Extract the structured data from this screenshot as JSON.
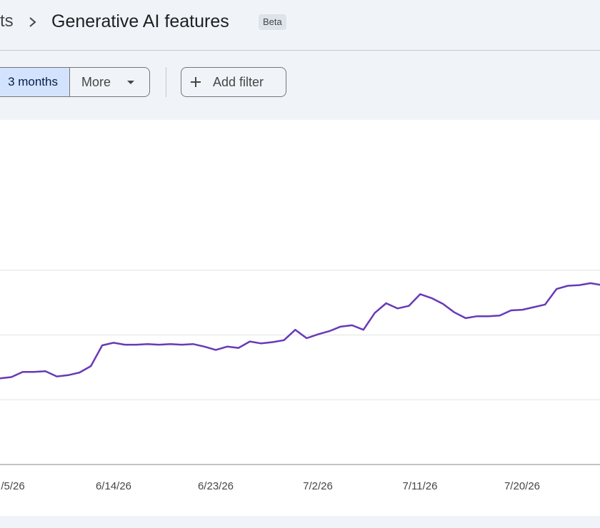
{
  "breadcrumb": {
    "previous_fragment": "ts",
    "current": "Generative AI features",
    "badge": "Beta",
    "separator_icon": "chevron-right-icon"
  },
  "toolbar": {
    "range_selected": "3 months",
    "more_label": "More",
    "add_filter_label": "Add filter",
    "add_filter_icon": "plus-icon"
  },
  "colors": {
    "line": "#673ab7",
    "selected_segment": "#d3e3fd",
    "page_background": "#f0f4f9"
  },
  "chart_data": {
    "type": "line",
    "x_tick_labels": [
      "/5/26",
      "6/14/26",
      "6/23/26",
      "7/2/26",
      "7/11/26",
      "7/20/26"
    ],
    "gridlines": 3,
    "y_range": [
      0,
      4
    ],
    "series": [
      {
        "values": [
          1.33,
          1.35,
          1.43,
          1.43,
          1.44,
          1.36,
          1.38,
          1.42,
          1.52,
          1.84,
          1.88,
          1.85,
          1.85,
          1.86,
          1.85,
          1.86,
          1.85,
          1.86,
          1.82,
          1.77,
          1.82,
          1.8,
          1.9,
          1.87,
          1.89,
          1.92,
          2.08,
          1.95,
          2.01,
          2.06,
          2.13,
          2.15,
          2.08,
          2.34,
          2.49,
          2.41,
          2.45,
          2.63,
          2.57,
          2.48,
          2.35,
          2.26,
          2.29,
          2.29,
          2.3,
          2.38,
          2.39,
          2.43,
          2.47,
          2.71,
          2.76,
          2.77,
          2.8,
          2.77
        ]
      }
    ]
  }
}
